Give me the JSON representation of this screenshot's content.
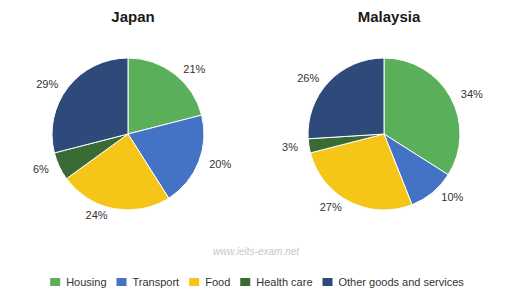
{
  "chart_data": [
    {
      "type": "pie",
      "title": "Japan",
      "categories": [
        "Housing",
        "Transport",
        "Food",
        "Health care",
        "Other goods and services"
      ],
      "values": [
        21,
        20,
        24,
        6,
        29
      ],
      "value_labels": [
        "21%",
        "20%",
        "24%",
        "6%",
        "29%"
      ],
      "colors": [
        "#5aaf5a",
        "#4472c4",
        "#f5c518",
        "#3a6b35",
        "#2e4a7a"
      ],
      "data_labels": true,
      "legend": "bottom",
      "annotations": [
        "www.ielts-exam.net"
      ]
    },
    {
      "type": "pie",
      "title": "Malaysia",
      "categories": [
        "Housing",
        "Transport",
        "Food",
        "Health care",
        "Other goods and services"
      ],
      "values": [
        34,
        10,
        27,
        3,
        26
      ],
      "value_labels": [
        "34%",
        "10%",
        "27%",
        "3%",
        "26%"
      ],
      "colors": [
        "#5aaf5a",
        "#4472c4",
        "#f5c518",
        "#3a6b35",
        "#2e4a7a"
      ],
      "data_labels": true,
      "legend": "bottom"
    }
  ]
}
